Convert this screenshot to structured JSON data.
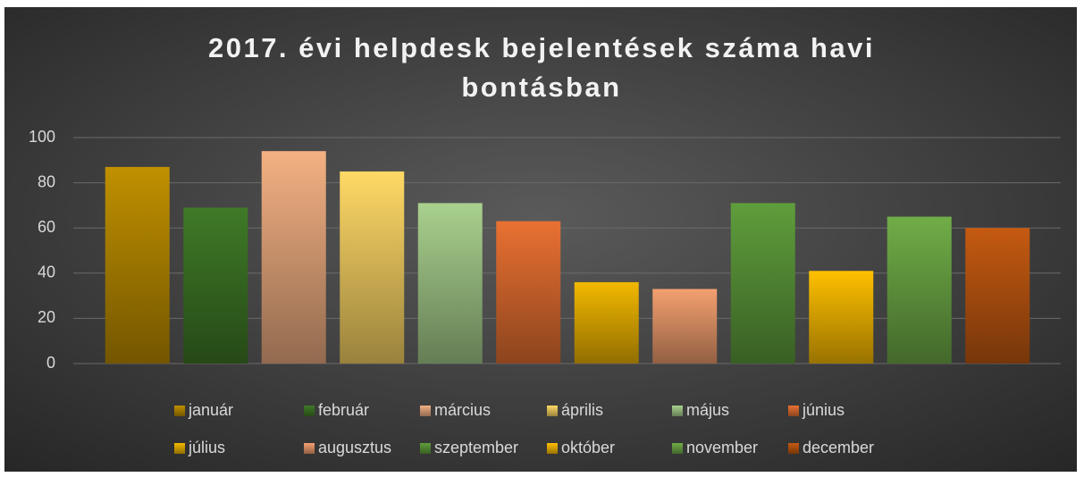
{
  "chart_data": {
    "type": "bar",
    "title": "2017. évi helpdesk bejelentések száma havi bontásban",
    "categories": [
      "január",
      "február",
      "március",
      "április",
      "május",
      "június",
      "július",
      "augusztus",
      "szeptember",
      "október",
      "november",
      "december"
    ],
    "values": [
      87,
      69,
      94,
      85,
      71,
      63,
      36,
      33,
      71,
      41,
      65,
      60
    ],
    "colors": [
      "#c09000",
      "#3f7a27",
      "#f4b183",
      "#ffd966",
      "#a9d18e",
      "#e97132",
      "#f2b800",
      "#f4a070",
      "#5f9e3c",
      "#ffc000",
      "#70ad47",
      "#c55a11"
    ],
    "ylim": [
      0,
      100
    ],
    "yticks": [
      0,
      20,
      40,
      60,
      80,
      100
    ],
    "grid": true,
    "legend": "bottom"
  }
}
